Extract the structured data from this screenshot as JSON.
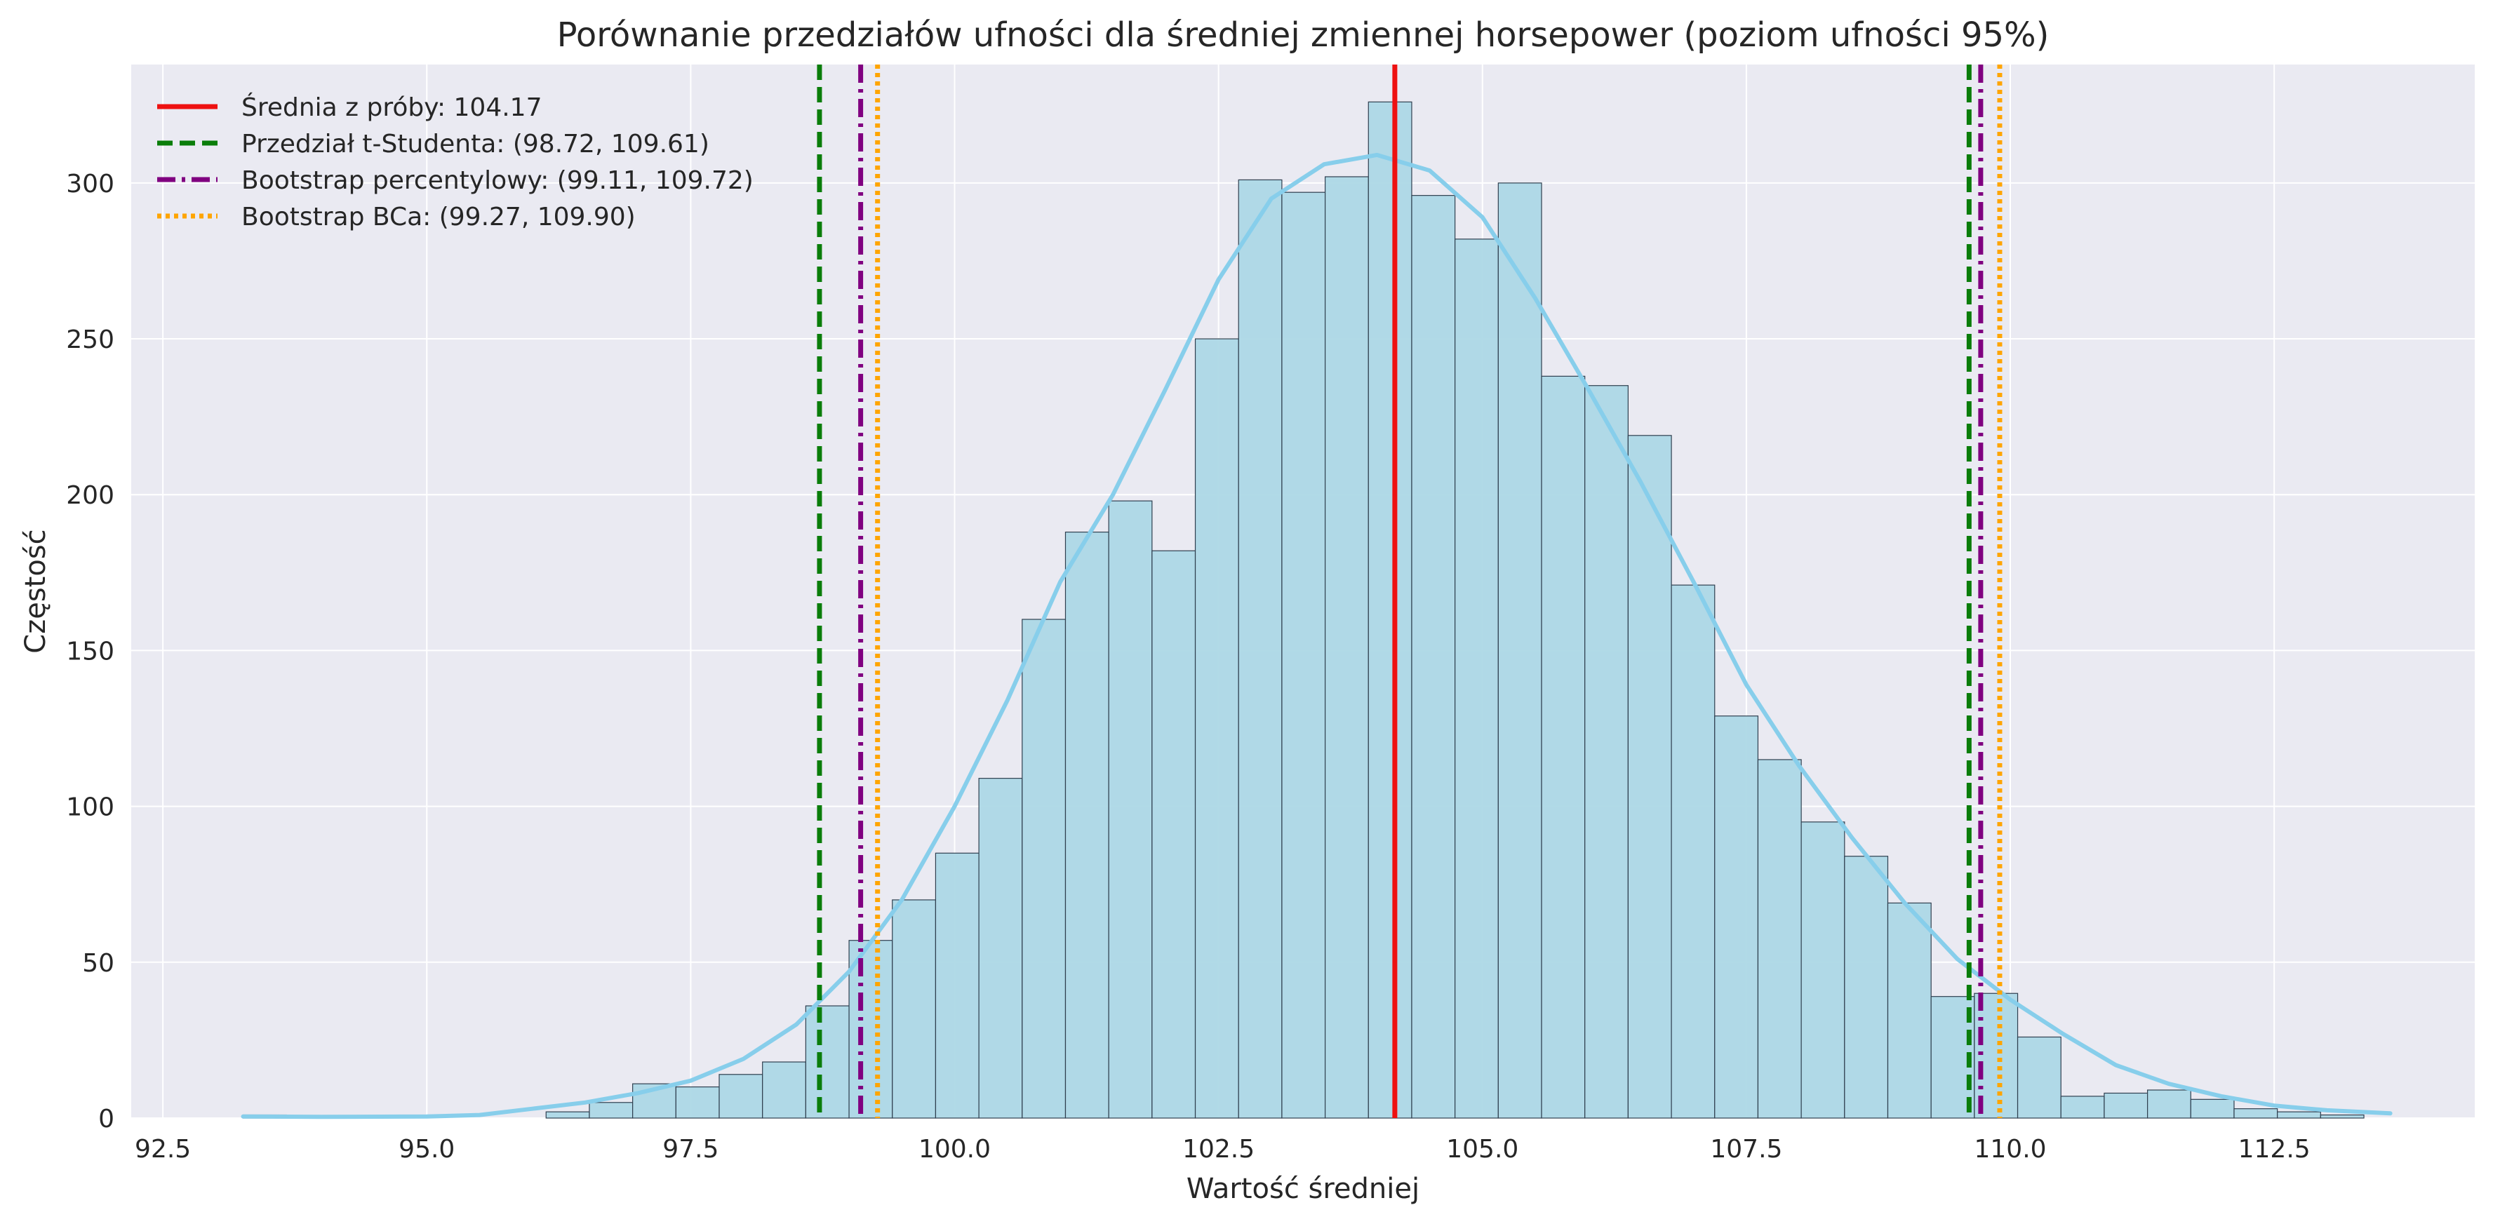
{
  "chart_data": {
    "type": "bar",
    "title": "Porównanie przedziałów ufności dla średniej zmiennej horsepower (poziom ufności 95%)",
    "xlabel": "Wartość średniej",
    "ylabel": "Częstość",
    "xlim": [
      92.2,
      114.4
    ],
    "ylim": [
      0,
      338
    ],
    "grid": true,
    "legend_position": "top-left",
    "x_ticks": [
      {
        "value": 92.5,
        "label": "92.5"
      },
      {
        "value": 95.0,
        "label": "95.0"
      },
      {
        "value": 97.5,
        "label": "97.5"
      },
      {
        "value": 100.0,
        "label": "100.0"
      },
      {
        "value": 102.5,
        "label": "102.5"
      },
      {
        "value": 105.0,
        "label": "105.0"
      },
      {
        "value": 107.5,
        "label": "107.5"
      },
      {
        "value": 110.0,
        "label": "110.0"
      },
      {
        "value": 112.5,
        "label": "112.5"
      }
    ],
    "y_ticks": [
      {
        "value": 0,
        "label": "0"
      },
      {
        "value": 50,
        "label": "50"
      },
      {
        "value": 100,
        "label": "100"
      },
      {
        "value": 150,
        "label": "150"
      },
      {
        "value": 200,
        "label": "200"
      },
      {
        "value": 250,
        "label": "250"
      },
      {
        "value": 300,
        "label": "300"
      }
    ],
    "histogram": {
      "bin_edges": [
        93.26,
        93.67,
        94.08,
        94.49,
        94.9,
        95.31,
        95.72,
        96.13,
        96.54,
        96.95,
        97.36,
        97.77,
        98.18,
        98.59,
        99.0,
        99.41,
        99.82,
        100.23,
        100.64,
        101.05,
        101.46,
        101.87,
        102.28,
        102.69,
        103.1,
        103.51,
        103.92,
        104.33,
        104.74,
        105.15,
        105.56,
        105.97,
        106.38,
        106.79,
        107.2,
        107.61,
        108.02,
        108.43,
        108.84,
        109.25,
        109.66,
        110.07,
        110.48,
        110.89,
        111.3,
        111.71,
        112.12,
        112.53,
        112.94,
        113.35,
        113.76
      ],
      "counts": [
        1,
        0,
        0,
        0,
        0,
        0,
        0,
        2,
        5,
        11,
        10,
        14,
        18,
        36,
        57,
        70,
        85,
        109,
        160,
        188,
        198,
        182,
        250,
        301,
        297,
        302,
        326,
        296,
        282,
        300,
        238,
        235,
        219,
        171,
        129,
        115,
        95,
        84,
        69,
        39,
        40,
        26,
        7,
        8,
        9,
        6,
        3,
        2,
        1,
        0
      ],
      "color": "#add8e6",
      "edge_color": "#2f3f4f"
    },
    "kde": {
      "color": "#87ceeb",
      "x": [
        93.26,
        94.0,
        95.0,
        95.5,
        96.0,
        96.5,
        97.0,
        97.5,
        98.0,
        98.5,
        99.0,
        99.5,
        100.0,
        100.5,
        101.0,
        101.5,
        102.0,
        102.5,
        103.0,
        103.5,
        104.0,
        104.5,
        105.0,
        105.5,
        106.0,
        106.5,
        107.0,
        107.5,
        108.0,
        108.5,
        109.0,
        109.5,
        110.0,
        110.5,
        111.0,
        111.5,
        112.0,
        112.5,
        113.0,
        113.6
      ],
      "y": [
        0.5,
        0.4,
        0.5,
        1,
        3,
        5,
        8,
        12,
        19,
        30,
        47,
        70,
        100,
        134,
        172,
        200,
        234,
        269,
        295,
        306,
        309,
        304,
        289,
        263,
        234,
        204,
        172,
        139,
        113,
        90,
        69,
        51,
        38,
        27,
        17,
        11,
        7,
        4,
        2.5,
        1.5
      ]
    },
    "lines": [
      {
        "name": "Średnia z próby: 104.17",
        "x": [
          104.17
        ],
        "color": "#ee1111",
        "style": "solid"
      },
      {
        "name": "Przedział t-Studenta: (98.72, 109.61)",
        "x": [
          98.72,
          109.61
        ],
        "color": "#0a7d0a",
        "style": "dashed"
      },
      {
        "name": "Bootstrap percentylowy: (99.11, 109.72)",
        "x": [
          99.11,
          109.72
        ],
        "color": "#800080",
        "style": "dashdot"
      },
      {
        "name": "Bootstrap BCa: (99.27, 109.90)",
        "x": [
          99.27,
          109.9
        ],
        "color": "#ffa500",
        "style": "dotted"
      }
    ],
    "colors": {
      "plot_bg": "#eaeaf2",
      "grid": "#ffffff"
    }
  }
}
